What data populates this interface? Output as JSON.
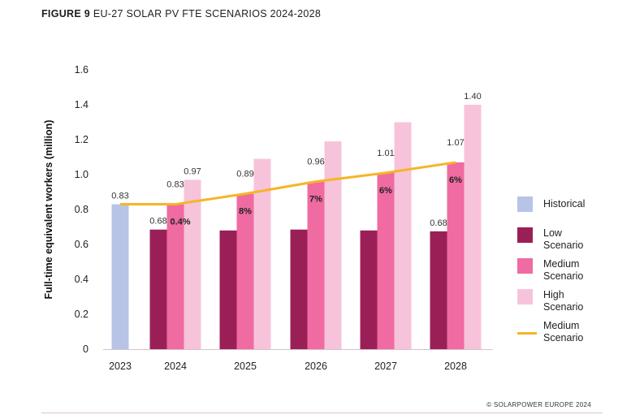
{
  "figure": {
    "number": "FIGURE 9",
    "title": "EU-27 SOLAR PV FTE SCENARIOS 2024-2028",
    "copyright": "© SOLARPOWER EUROPE 2024"
  },
  "chart_data": {
    "type": "bar",
    "ylabel": "Full-time equivalent workers (million)",
    "ylim": [
      0,
      1.6
    ],
    "yticks": [
      "0",
      "0.2",
      "0.4",
      "0.6",
      "0.8",
      "1.0",
      "1.2",
      "1.4",
      "1.6"
    ],
    "ytick_values": [
      0,
      0.2,
      0.4,
      0.6,
      0.8,
      1.0,
      1.2,
      1.4,
      1.6
    ],
    "categories": [
      "2023",
      "2024",
      "2025",
      "2026",
      "2027",
      "2028"
    ],
    "grid": false,
    "legend_position": "right",
    "colors": {
      "historical": "#b8c4e6",
      "low": "#9b1f57",
      "medium": "#ef6ba1",
      "high": "#f7c3da",
      "medium_line": "#f6b526"
    },
    "series": [
      {
        "name": "Historical",
        "key": "historical",
        "values": [
          0.83,
          null,
          null,
          null,
          null,
          null
        ],
        "labels": [
          "0.83",
          "",
          "",
          "",
          "",
          ""
        ]
      },
      {
        "name": "Low Scenario",
        "key": "low",
        "values": [
          null,
          0.685,
          0.68,
          0.685,
          0.68,
          0.675
        ],
        "labels": [
          "",
          "0.68",
          "",
          "",
          "",
          "0.68"
        ]
      },
      {
        "name": "Medium Scenario",
        "key": "medium",
        "values": [
          null,
          0.83,
          0.89,
          0.96,
          1.01,
          1.07
        ],
        "labels": [
          "",
          "0.83",
          "0.89",
          "0.96",
          "1.01",
          "1.07"
        ],
        "growth": [
          "",
          "0.4%",
          "8%",
          "7%",
          "6%",
          "6%"
        ]
      },
      {
        "name": "High Scenario",
        "key": "high",
        "values": [
          null,
          0.97,
          1.09,
          1.19,
          1.3,
          1.4
        ],
        "labels": [
          "",
          "0.97",
          "",
          "",
          "",
          "1.40"
        ]
      },
      {
        "name": "Medium Scenario",
        "key": "medium_line",
        "type": "line",
        "values": [
          0.83,
          0.83,
          0.89,
          0.96,
          1.01,
          1.07
        ]
      }
    ]
  },
  "legend": {
    "items": [
      {
        "label_lines": [
          "Historical"
        ],
        "type": "swatch",
        "color_key": "historical"
      },
      {
        "label_lines": [
          "Low",
          "Scenario"
        ],
        "type": "swatch",
        "color_key": "low"
      },
      {
        "label_lines": [
          "Medium",
          "Scenario"
        ],
        "type": "swatch",
        "color_key": "medium"
      },
      {
        "label_lines": [
          "High",
          "Scenario"
        ],
        "type": "swatch",
        "color_key": "high"
      },
      {
        "label_lines": [
          "Medium",
          "Scenario"
        ],
        "type": "line",
        "color_key": "medium_line"
      }
    ]
  }
}
